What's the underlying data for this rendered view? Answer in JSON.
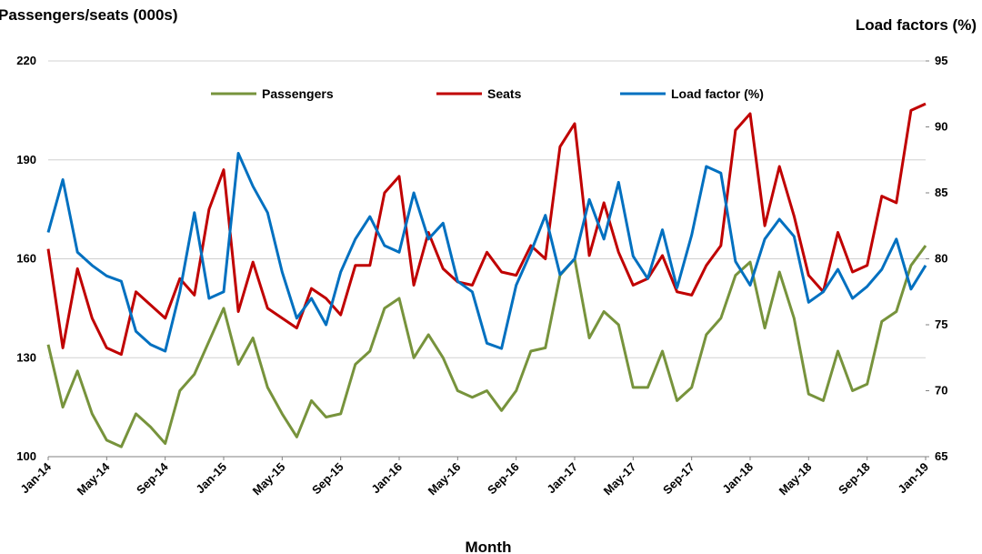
{
  "chart_data": {
    "type": "line",
    "xlabel": "Month",
    "ylabel_left": "Passengers/seats (000s)",
    "ylabel_right": "Load factors (%)",
    "ylim_left": [
      100,
      220
    ],
    "yticks_left": [
      100,
      130,
      160,
      190,
      220
    ],
    "ylim_right": [
      65,
      95
    ],
    "yticks_right": [
      65,
      70,
      75,
      80,
      85,
      90,
      95
    ],
    "grid": "horizontal",
    "legend_position": "top",
    "x": [
      "Jan-14",
      "Feb-14",
      "Mar-14",
      "Apr-14",
      "May-14",
      "Jun-14",
      "Jul-14",
      "Aug-14",
      "Sep-14",
      "Oct-14",
      "Nov-14",
      "Dec-14",
      "Jan-15",
      "Feb-15",
      "Mar-15",
      "Apr-15",
      "May-15",
      "Jun-15",
      "Jul-15",
      "Aug-15",
      "Sep-15",
      "Oct-15",
      "Nov-15",
      "Dec-15",
      "Jan-16",
      "Feb-16",
      "Mar-16",
      "Apr-16",
      "May-16",
      "Jun-16",
      "Jul-16",
      "Aug-16",
      "Sep-16",
      "Oct-16",
      "Nov-16",
      "Dec-16",
      "Jan-17",
      "Feb-17",
      "Mar-17",
      "Apr-17",
      "May-17",
      "Jun-17",
      "Jul-17",
      "Aug-17",
      "Sep-17",
      "Oct-17",
      "Nov-17",
      "Dec-17",
      "Jan-18",
      "Feb-18",
      "Mar-18",
      "Apr-18",
      "May-18",
      "Jun-18",
      "Jul-18",
      "Aug-18",
      "Sep-18",
      "Oct-18",
      "Nov-18",
      "Dec-18",
      "Jan-19"
    ],
    "x_tick_labels": [
      "Jan-14",
      "May-14",
      "Sep-14",
      "Jan-15",
      "May-15",
      "Sep-15",
      "Jan-16",
      "May-16",
      "Sep-16",
      "Jan-17",
      "May-17",
      "Sep-17",
      "Jan-18",
      "May-18",
      "Sep-18",
      "Jan-19"
    ],
    "series": [
      {
        "name": "Passengers",
        "axis": "left",
        "color": "#77933c",
        "values": [
          134,
          115,
          126,
          113,
          105,
          103,
          113,
          109,
          104,
          120,
          125,
          135,
          145,
          128,
          136,
          121,
          113,
          106,
          117,
          112,
          113,
          128,
          132,
          145,
          148,
          130,
          137,
          130,
          120,
          118,
          120,
          114,
          120,
          132,
          133,
          155,
          160,
          136,
          144,
          140,
          121,
          121,
          132,
          117,
          121,
          137,
          142,
          155,
          159,
          139,
          156,
          142,
          119,
          117,
          132,
          120,
          122,
          141,
          144,
          158,
          164
        ]
      },
      {
        "name": "Seats",
        "axis": "left",
        "color": "#c00000",
        "values": [
          163,
          133,
          157,
          142,
          133,
          131,
          150,
          146,
          142,
          154,
          149,
          175,
          187,
          144,
          159,
          145,
          142,
          139,
          151,
          148,
          143,
          158,
          158,
          180,
          185,
          152,
          168,
          157,
          153,
          152,
          162,
          156,
          155,
          164,
          160,
          194,
          201,
          161,
          177,
          162,
          152,
          154,
          161,
          150,
          149,
          158,
          164,
          199,
          204,
          170,
          188,
          173,
          155,
          150,
          168,
          156,
          158,
          179,
          177,
          205,
          207
        ]
      },
      {
        "name": "Load factor (%)",
        "axis": "right",
        "color": "#0070c0",
        "values": [
          82,
          86,
          80.5,
          79.5,
          78.7,
          78.3,
          74.5,
          73.5,
          73,
          77.5,
          83.5,
          77,
          77.5,
          88,
          85.5,
          83.5,
          79,
          75.5,
          77,
          75,
          79,
          81.5,
          83.2,
          81,
          80.5,
          85,
          81.5,
          82.7,
          78.3,
          77.5,
          73.6,
          73.2,
          78,
          80.5,
          83.3,
          78.8,
          80,
          84.5,
          81.5,
          85.8,
          80.2,
          78.5,
          82.2,
          77.8,
          81.8,
          87,
          86.5,
          79.8,
          78,
          81.5,
          83,
          81.7,
          76.7,
          77.5,
          79.2,
          77,
          77.9,
          79.2,
          81.5,
          77.7,
          79.5
        ]
      }
    ]
  }
}
